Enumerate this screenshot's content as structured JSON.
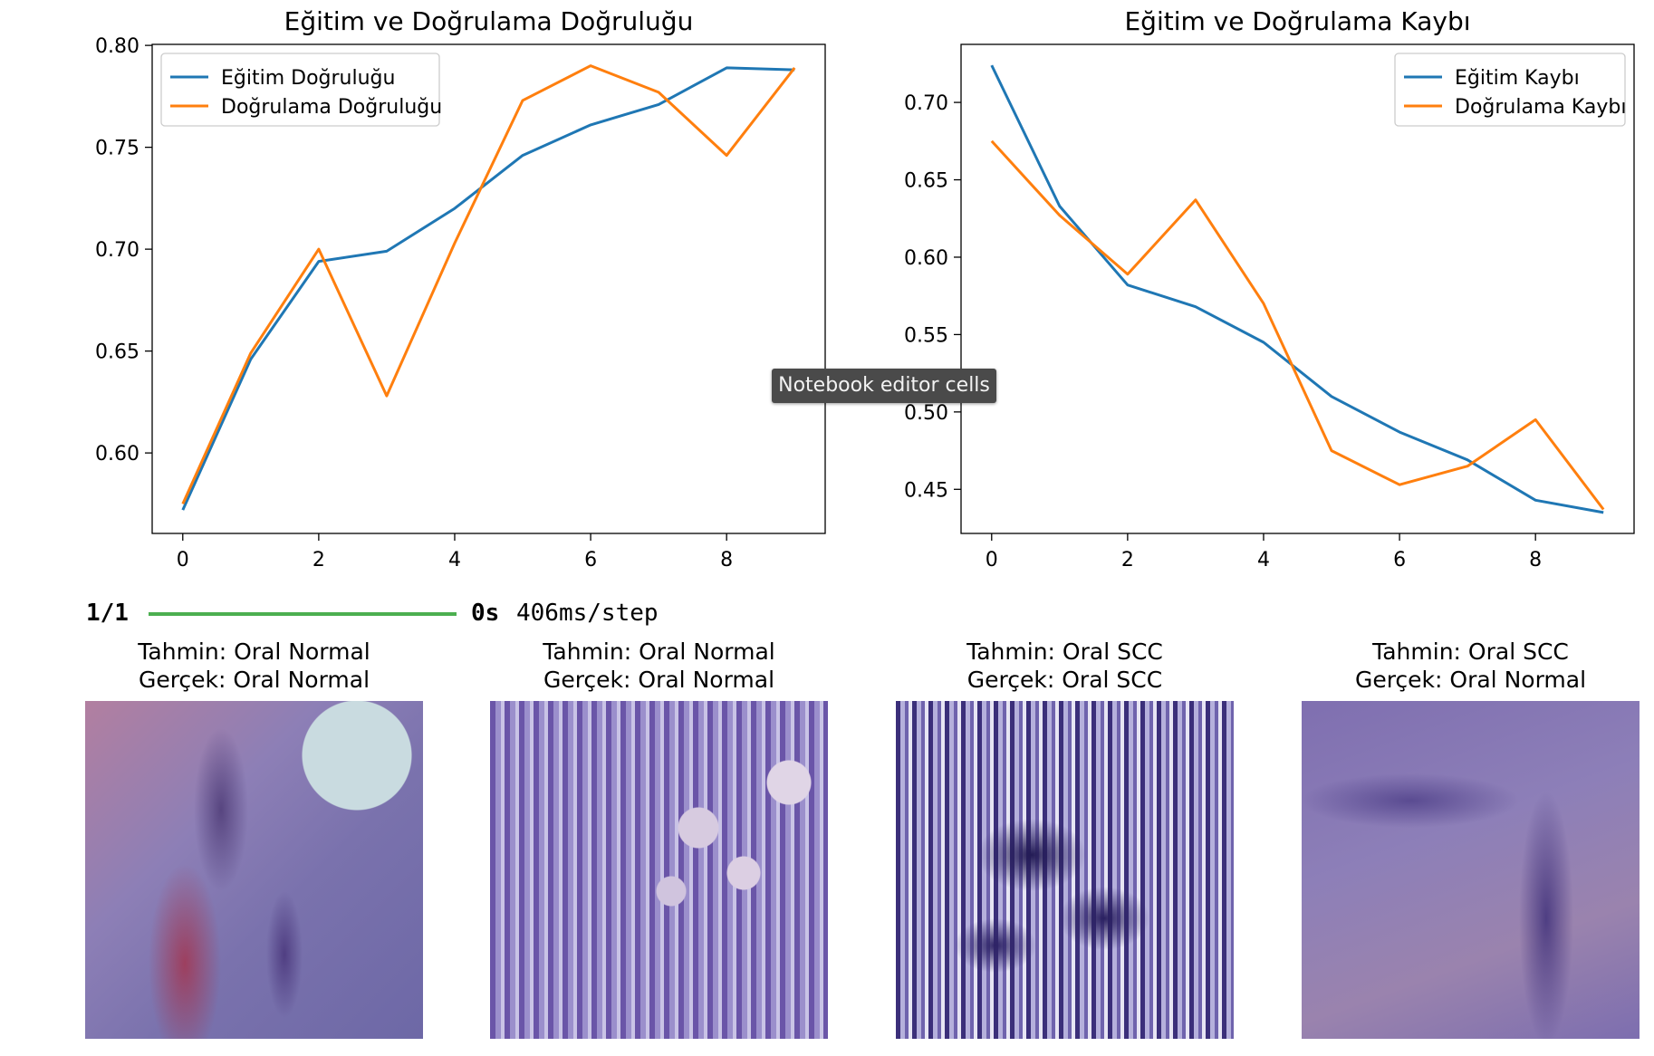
{
  "chart_data": [
    {
      "type": "line",
      "title": "Eğitim ve Doğrulama Doğruluğu",
      "xlabel": "",
      "ylabel": "",
      "x": [
        0,
        1,
        2,
        3,
        4,
        5,
        6,
        7,
        8,
        9
      ],
      "xlim": [
        -0.45,
        9.45
      ],
      "ylim": [
        0.5605,
        0.8005
      ],
      "xticks": [
        0,
        2,
        4,
        6,
        8
      ],
      "yticks": [
        0.6,
        0.65,
        0.7,
        0.75,
        0.8
      ],
      "ytick_labels": [
        "0.60",
        "0.65",
        "0.70",
        "0.75",
        "0.80"
      ],
      "grid": false,
      "legend": "upper left",
      "series": [
        {
          "name": "Eğitim Doğruluğu",
          "color": "#1f77b4",
          "values": [
            0.572,
            0.646,
            0.694,
            0.699,
            0.72,
            0.746,
            0.761,
            0.771,
            0.789,
            0.788
          ]
        },
        {
          "name": "Doğrulama Doğruluğu",
          "color": "#ff7f0e",
          "values": [
            0.575,
            0.649,
            0.7,
            0.628,
            0.703,
            0.773,
            0.79,
            0.777,
            0.746,
            0.789
          ]
        }
      ]
    },
    {
      "type": "line",
      "title": "Eğitim ve Doğrulama Kaybı",
      "xlabel": "",
      "ylabel": "",
      "x": [
        0,
        1,
        2,
        3,
        4,
        5,
        6,
        7,
        8,
        9
      ],
      "xlim": [
        -0.45,
        9.45
      ],
      "ylim": [
        0.4215,
        0.7375
      ],
      "xticks": [
        0,
        2,
        4,
        6,
        8
      ],
      "yticks": [
        0.45,
        0.5,
        0.55,
        0.6,
        0.65,
        0.7
      ],
      "ytick_labels": [
        "0.45",
        "0.50",
        "0.55",
        "0.60",
        "0.65",
        "0.70"
      ],
      "grid": false,
      "legend": "upper right",
      "series": [
        {
          "name": "Eğitim Kaybı",
          "color": "#1f77b4",
          "values": [
            0.724,
            0.633,
            0.582,
            0.568,
            0.545,
            0.51,
            0.487,
            0.469,
            0.443,
            0.435
          ]
        },
        {
          "name": "Doğrulama Kaybı",
          "color": "#ff7f0e",
          "values": [
            0.675,
            0.627,
            0.589,
            0.637,
            0.57,
            0.475,
            0.453,
            0.465,
            0.495,
            0.437
          ]
        }
      ]
    }
  ],
  "tooltip": "Notebook editor cells",
  "progress": {
    "steps": "1/1",
    "elapsed": "0s",
    "rate": "406ms/step",
    "bar_fraction": 1.0,
    "bar_color": "#4caf50"
  },
  "predictions": [
    {
      "pred": "Tahmin: Oral Normal",
      "true": "Gerçek: Oral Normal"
    },
    {
      "pred": "Tahmin: Oral Normal",
      "true": "Gerçek: Oral Normal"
    },
    {
      "pred": "Tahmin: Oral SCC",
      "true": "Gerçek: Oral SCC"
    },
    {
      "pred": "Tahmin: Oral SCC",
      "true": "Gerçek: Oral Normal"
    }
  ]
}
